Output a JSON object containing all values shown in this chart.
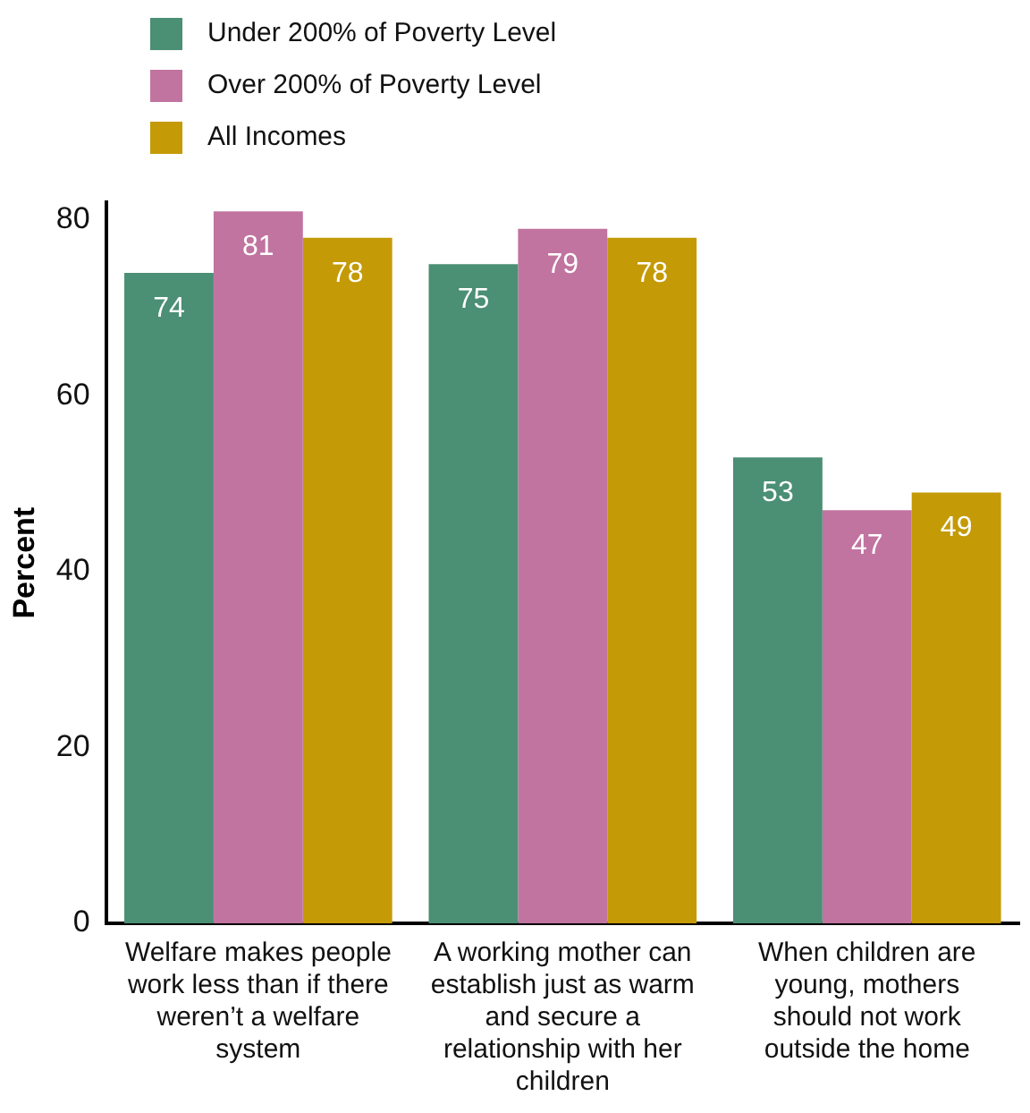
{
  "chart_data": {
    "type": "bar",
    "ylabel": "Percent",
    "categories": [
      "Welfare makes people work less than if there weren’t a welfare system",
      "A working mother can establish just as warm and secure a relationship with her children",
      "When children are young, mothers should not work outside the home"
    ],
    "series": [
      {
        "name": "Under 200% of Poverty Level",
        "color": "#4b8f74",
        "values": [
          74,
          75,
          53
        ]
      },
      {
        "name": "Over 200% of Poverty Level",
        "color": "#c174a0",
        "values": [
          81,
          79,
          47
        ]
      },
      {
        "name": "All Incomes",
        "color": "#c49a06",
        "values": [
          78,
          78,
          49
        ]
      }
    ],
    "ylim": [
      0,
      82
    ],
    "yticks": [
      0,
      20,
      40,
      60,
      80
    ],
    "grid": false,
    "legend": "top left",
    "data_labels": true
  }
}
